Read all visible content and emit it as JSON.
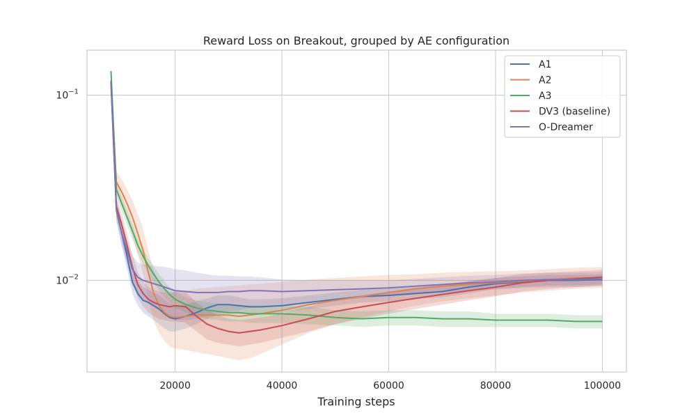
{
  "chart_data": {
    "type": "line",
    "title": "Reward Loss on Breakout, grouped by AE configuration",
    "xlabel": "Training steps",
    "ylabel": "",
    "yscale": "log",
    "xlim": [
      3500,
      104500
    ],
    "ylim": [
      0.0032,
      0.175
    ],
    "x_ticks": [
      20000,
      40000,
      60000,
      80000,
      100000
    ],
    "x_tick_labels": [
      "20000",
      "40000",
      "60000",
      "80000",
      "100000"
    ],
    "y_ticks": [
      0.01,
      0.1
    ],
    "y_tick_labels": [
      {
        "base": "10",
        "exp": "−2"
      },
      {
        "base": "10",
        "exp": "−1"
      }
    ],
    "grid": true,
    "legend_position": "top-right",
    "series": [
      {
        "name": "A1",
        "color": "#4c72b0",
        "x": [
          8000,
          9000,
          10000,
          11000,
          12000,
          13000,
          14000,
          15000,
          16000,
          17000,
          18000,
          19000,
          20000,
          22000,
          24000,
          26000,
          28000,
          30000,
          32000,
          34000,
          36000,
          40000,
          45000,
          50000,
          55000,
          60000,
          65000,
          70000,
          75000,
          80000,
          85000,
          90000,
          95000,
          100000
        ],
        "y": [
          0.115,
          0.024,
          0.018,
          0.0135,
          0.0098,
          0.0085,
          0.0078,
          0.0076,
          0.0073,
          0.007,
          0.0066,
          0.0063,
          0.0062,
          0.0064,
          0.0067,
          0.0071,
          0.0074,
          0.0074,
          0.0073,
          0.0072,
          0.0072,
          0.0073,
          0.0076,
          0.0079,
          0.0082,
          0.0083,
          0.0085,
          0.0087,
          0.0092,
          0.0096,
          0.0098,
          0.01,
          0.01,
          0.0101
        ],
        "band_low": [
          0.105,
          0.021,
          0.0155,
          0.0115,
          0.0085,
          0.0073,
          0.0067,
          0.0064,
          0.0061,
          0.0058,
          0.0055,
          0.0053,
          0.0053,
          0.0055,
          0.0058,
          0.0062,
          0.0065,
          0.0066,
          0.0066,
          0.0066,
          0.0066,
          0.0067,
          0.007,
          0.0073,
          0.0076,
          0.0077,
          0.0079,
          0.0081,
          0.0085,
          0.009,
          0.0092,
          0.0094,
          0.0094,
          0.0095
        ],
        "band_high": [
          0.125,
          0.028,
          0.021,
          0.0158,
          0.0115,
          0.01,
          0.0092,
          0.0089,
          0.0086,
          0.0083,
          0.0079,
          0.0075,
          0.0073,
          0.0074,
          0.0077,
          0.008,
          0.0083,
          0.0083,
          0.0081,
          0.0079,
          0.0079,
          0.008,
          0.0083,
          0.0086,
          0.0089,
          0.009,
          0.0092,
          0.0094,
          0.0099,
          0.0103,
          0.0105,
          0.0107,
          0.0107,
          0.0108
        ]
      },
      {
        "name": "A2",
        "color": "#dd8452",
        "x": [
          8000,
          9000,
          10000,
          11000,
          12000,
          13000,
          14000,
          15000,
          16000,
          17000,
          18000,
          19000,
          20000,
          22000,
          24000,
          26000,
          28000,
          30000,
          32000,
          34000,
          36000,
          40000,
          45000,
          50000,
          55000,
          60000,
          65000,
          70000,
          75000,
          80000,
          85000,
          90000,
          95000,
          100000
        ],
        "y": [
          0.12,
          0.034,
          0.03,
          0.026,
          0.022,
          0.018,
          0.0145,
          0.011,
          0.0085,
          0.0073,
          0.0067,
          0.0064,
          0.0063,
          0.0064,
          0.0065,
          0.0065,
          0.0065,
          0.0065,
          0.0064,
          0.0065,
          0.0066,
          0.0069,
          0.0074,
          0.0078,
          0.0082,
          0.0086,
          0.009,
          0.0093,
          0.0095,
          0.0097,
          0.0099,
          0.0101,
          0.0103,
          0.0104
        ],
        "band_low": [
          0.11,
          0.029,
          0.025,
          0.021,
          0.0175,
          0.0138,
          0.0108,
          0.0079,
          0.006,
          0.0052,
          0.0047,
          0.0044,
          0.0043,
          0.0042,
          0.0041,
          0.004,
          0.0039,
          0.0038,
          0.0037,
          0.0038,
          0.004,
          0.0045,
          0.0052,
          0.0058,
          0.0063,
          0.0068,
          0.0073,
          0.0077,
          0.008,
          0.0083,
          0.0086,
          0.0088,
          0.009,
          0.0091
        ],
        "band_high": [
          0.13,
          0.039,
          0.035,
          0.031,
          0.027,
          0.023,
          0.019,
          0.0145,
          0.0112,
          0.0098,
          0.009,
          0.0087,
          0.0086,
          0.0088,
          0.009,
          0.0091,
          0.0092,
          0.0093,
          0.0094,
          0.0095,
          0.0096,
          0.0098,
          0.0101,
          0.0103,
          0.0105,
          0.0107,
          0.0108,
          0.011,
          0.0111,
          0.0112,
          0.0113,
          0.0115,
          0.0117,
          0.0118
        ]
      },
      {
        "name": "A3",
        "color": "#55a868",
        "x": [
          8000,
          9000,
          10000,
          11000,
          12000,
          13000,
          14000,
          15000,
          16000,
          17000,
          18000,
          19000,
          20000,
          22000,
          24000,
          26000,
          28000,
          30000,
          32000,
          34000,
          36000,
          40000,
          45000,
          50000,
          55000,
          60000,
          65000,
          70000,
          75000,
          80000,
          85000,
          90000,
          95000,
          100000
        ],
        "y": [
          0.135,
          0.031,
          0.026,
          0.022,
          0.0185,
          0.0155,
          0.0135,
          0.012,
          0.0108,
          0.0098,
          0.009,
          0.0084,
          0.0079,
          0.0074,
          0.0071,
          0.0069,
          0.0068,
          0.0067,
          0.0067,
          0.0066,
          0.0066,
          0.0066,
          0.0065,
          0.0063,
          0.0062,
          0.0063,
          0.0063,
          0.0062,
          0.0062,
          0.0061,
          0.0061,
          0.0061,
          0.006,
          0.006
        ],
        "band_low": [
          0.128,
          0.028,
          0.0235,
          0.0198,
          0.0167,
          0.014,
          0.0122,
          0.0108,
          0.0097,
          0.0088,
          0.0081,
          0.0076,
          0.0071,
          0.0067,
          0.0064,
          0.0062,
          0.0061,
          0.006,
          0.006,
          0.0059,
          0.0059,
          0.0059,
          0.0058,
          0.0057,
          0.0056,
          0.0057,
          0.0057,
          0.0056,
          0.0056,
          0.0056,
          0.0056,
          0.0056,
          0.0055,
          0.0055
        ],
        "band_high": [
          0.142,
          0.034,
          0.0285,
          0.0242,
          0.0203,
          0.017,
          0.0148,
          0.0132,
          0.0119,
          0.0108,
          0.0099,
          0.0092,
          0.0087,
          0.0081,
          0.0078,
          0.0076,
          0.0075,
          0.0074,
          0.0074,
          0.0073,
          0.0073,
          0.0073,
          0.0072,
          0.0069,
          0.0068,
          0.0069,
          0.0069,
          0.0068,
          0.0068,
          0.0066,
          0.0066,
          0.0066,
          0.0065,
          0.0065
        ]
      },
      {
        "name": "DV3 (baseline)",
        "color": "#c44e52",
        "x": [
          8000,
          9000,
          10000,
          11000,
          12000,
          13000,
          14000,
          15000,
          16000,
          17000,
          18000,
          19000,
          20000,
          22000,
          24000,
          26000,
          28000,
          30000,
          32000,
          34000,
          36000,
          40000,
          45000,
          50000,
          55000,
          60000,
          65000,
          70000,
          75000,
          80000,
          85000,
          90000,
          95000,
          100000
        ],
        "y": [
          0.118,
          0.025,
          0.02,
          0.0155,
          0.0118,
          0.0095,
          0.0085,
          0.0079,
          0.0076,
          0.0074,
          0.0073,
          0.0072,
          0.0073,
          0.0072,
          0.0064,
          0.0058,
          0.0055,
          0.0053,
          0.0052,
          0.0053,
          0.0054,
          0.0057,
          0.0062,
          0.0068,
          0.0072,
          0.0076,
          0.008,
          0.0084,
          0.0088,
          0.0092,
          0.0097,
          0.01,
          0.0102,
          0.0104
        ],
        "band_low": [
          0.108,
          0.022,
          0.0172,
          0.0132,
          0.01,
          0.0081,
          0.0072,
          0.0067,
          0.0064,
          0.0062,
          0.0061,
          0.006,
          0.006,
          0.0059,
          0.0053,
          0.0048,
          0.0046,
          0.0045,
          0.0044,
          0.0045,
          0.0046,
          0.0049,
          0.0053,
          0.0058,
          0.0062,
          0.0066,
          0.007,
          0.0074,
          0.0078,
          0.0082,
          0.0087,
          0.009,
          0.0092,
          0.0094
        ],
        "band_high": [
          0.128,
          0.028,
          0.023,
          0.018,
          0.0138,
          0.0111,
          0.0099,
          0.0092,
          0.0089,
          0.0087,
          0.0086,
          0.0085,
          0.0087,
          0.0086,
          0.0076,
          0.0069,
          0.0065,
          0.0062,
          0.0061,
          0.0062,
          0.0063,
          0.0066,
          0.0072,
          0.0079,
          0.0083,
          0.0087,
          0.0091,
          0.0095,
          0.0099,
          0.0103,
          0.0108,
          0.011,
          0.0112,
          0.0114
        ]
      },
      {
        "name": "O-Dreamer",
        "color": "#8172b3",
        "x": [
          8000,
          9000,
          10000,
          11000,
          12000,
          13000,
          14000,
          15000,
          16000,
          17000,
          18000,
          19000,
          20000,
          22000,
          24000,
          26000,
          28000,
          30000,
          32000,
          34000,
          36000,
          40000,
          45000,
          50000,
          55000,
          60000,
          65000,
          70000,
          75000,
          80000,
          85000,
          90000,
          95000,
          100000
        ],
        "y": [
          0.12,
          0.024,
          0.018,
          0.0145,
          0.0115,
          0.0104,
          0.01,
          0.0098,
          0.0096,
          0.0094,
          0.0092,
          0.009,
          0.0088,
          0.0087,
          0.0086,
          0.0086,
          0.0086,
          0.0087,
          0.0087,
          0.0088,
          0.0088,
          0.0087,
          0.0088,
          0.0089,
          0.009,
          0.0091,
          0.0093,
          0.0095,
          0.0097,
          0.0098,
          0.01,
          0.0101,
          0.0101,
          0.0102
        ],
        "band_low": [
          0.11,
          0.021,
          0.0155,
          0.0122,
          0.0094,
          0.0083,
          0.0078,
          0.0075,
          0.0072,
          0.0069,
          0.0066,
          0.0063,
          0.0061,
          0.0061,
          0.0062,
          0.0064,
          0.0066,
          0.0068,
          0.0069,
          0.0071,
          0.0072,
          0.0073,
          0.0076,
          0.0078,
          0.008,
          0.0082,
          0.0084,
          0.0086,
          0.0088,
          0.0089,
          0.0091,
          0.0092,
          0.0092,
          0.0093
        ],
        "band_high": [
          0.13,
          0.027,
          0.0205,
          0.0168,
          0.0136,
          0.0125,
          0.0122,
          0.0121,
          0.012,
          0.0119,
          0.0118,
          0.0117,
          0.0115,
          0.0113,
          0.011,
          0.0108,
          0.0106,
          0.0106,
          0.0105,
          0.0105,
          0.0104,
          0.0101,
          0.01,
          0.01,
          0.01,
          0.01,
          0.0102,
          0.0104,
          0.0106,
          0.0107,
          0.0109,
          0.011,
          0.011,
          0.0111
        ]
      }
    ]
  }
}
